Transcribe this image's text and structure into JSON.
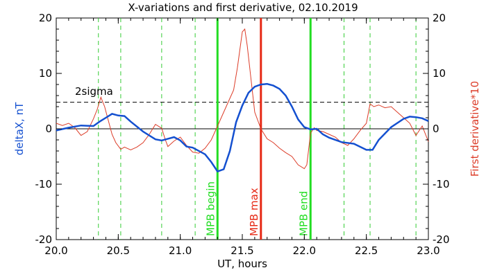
{
  "chart_data": {
    "type": "line",
    "title": "X-variations and first derivative, 02.10.2019",
    "xlabel": "UT, hours",
    "ylabel_left": "deltaX, nT",
    "ylabel_right": "First derivative*10",
    "xlim": [
      20.0,
      23.0
    ],
    "ylim": [
      -20,
      20
    ],
    "x_ticks": [
      "20.0",
      "20.5",
      "21.0",
      "21.5",
      "22.0",
      "22.5",
      "23.0"
    ],
    "x_tick_values": [
      20.0,
      20.5,
      21.0,
      21.5,
      22.0,
      22.5,
      23.0
    ],
    "y_ticks": [
      "20",
      "10",
      "0",
      "-10",
      "-20"
    ],
    "y_tick_values": [
      20,
      10,
      0,
      -10,
      -20
    ],
    "threshold": {
      "label": "2sigma",
      "value": 4.8
    },
    "zero_line": 0,
    "colors": {
      "deltaX": "#1450d0",
      "derivative": "#dc3c28",
      "mpb_begin": "#22dd22",
      "mpb_max": "#e62814",
      "mpb_end": "#22dd22",
      "dashed_green": "#33cc33"
    },
    "green_dashed_x": [
      20.34,
      20.52,
      20.85,
      21.12,
      22.32,
      22.53,
      22.9
    ],
    "markers": [
      {
        "label": "MPB begin",
        "x": 21.3,
        "color": "#22dd22"
      },
      {
        "label": "MPB max",
        "x": 21.65,
        "color": "#e62814"
      },
      {
        "label": "MPB end",
        "x": 22.05,
        "color": "#22dd22"
      }
    ],
    "series": [
      {
        "name": "deltaX",
        "color": "#1450d0",
        "x": [
          20.0,
          20.1,
          20.2,
          20.3,
          20.35,
          20.4,
          20.45,
          20.5,
          20.55,
          20.6,
          20.7,
          20.8,
          20.85,
          20.9,
          20.95,
          21.0,
          21.05,
          21.1,
          21.2,
          21.25,
          21.3,
          21.35,
          21.4,
          21.45,
          21.5,
          21.55,
          21.6,
          21.65,
          21.7,
          21.75,
          21.8,
          21.85,
          21.9,
          21.95,
          22.0,
          22.05,
          22.1,
          22.15,
          22.2,
          22.3,
          22.4,
          22.5,
          22.55,
          22.6,
          22.7,
          22.8,
          22.85,
          22.9,
          22.95,
          23.0
        ],
        "values": [
          -0.3,
          0.2,
          0.6,
          0.5,
          1.3,
          2.0,
          2.7,
          2.4,
          2.3,
          1.3,
          -0.5,
          -1.9,
          -2.1,
          -1.8,
          -1.5,
          -2.1,
          -3.2,
          -3.4,
          -4.6,
          -6.0,
          -7.7,
          -7.3,
          -4.0,
          1.2,
          4.2,
          6.5,
          7.6,
          8.0,
          8.1,
          7.8,
          7.2,
          6.0,
          4.0,
          1.7,
          0.3,
          -0.1,
          0.0,
          -1.0,
          -1.6,
          -2.4,
          -2.7,
          -3.8,
          -3.8,
          -2.0,
          0.3,
          1.8,
          2.2,
          2.1,
          1.9,
          1.4
        ]
      },
      {
        "name": "First derivative*10",
        "color": "#dc3c28",
        "x": [
          20.0,
          20.05,
          20.1,
          20.15,
          20.2,
          20.25,
          20.3,
          20.33,
          20.36,
          20.39,
          20.42,
          20.45,
          20.48,
          20.52,
          20.55,
          20.6,
          20.65,
          20.7,
          20.75,
          20.8,
          20.85,
          20.88,
          20.9,
          20.95,
          21.0,
          21.05,
          21.1,
          21.15,
          21.2,
          21.25,
          21.3,
          21.35,
          21.4,
          21.43,
          21.46,
          21.5,
          21.52,
          21.54,
          21.57,
          21.6,
          21.65,
          21.7,
          21.75,
          21.8,
          21.85,
          21.9,
          21.95,
          22.0,
          22.02,
          22.05,
          22.08,
          22.1,
          22.15,
          22.2,
          22.25,
          22.3,
          22.35,
          22.4,
          22.45,
          22.5,
          22.53,
          22.56,
          22.6,
          22.65,
          22.7,
          22.75,
          22.8,
          22.85,
          22.9,
          22.95,
          23.0
        ],
        "values": [
          1.0,
          0.6,
          1.0,
          0.2,
          -1.2,
          -0.5,
          1.8,
          3.5,
          5.7,
          4.0,
          1.5,
          -1.0,
          -2.5,
          -3.7,
          -3.3,
          -3.8,
          -3.3,
          -2.5,
          -1.0,
          0.8,
          0.1,
          -2.0,
          -3.2,
          -2.2,
          -1.5,
          -3.0,
          -4.2,
          -4.4,
          -3.5,
          -2.0,
          0.5,
          3.0,
          5.5,
          7.0,
          11.0,
          17.5,
          18.0,
          15.0,
          9.0,
          3.0,
          0.0,
          -1.8,
          -2.5,
          -3.5,
          -4.3,
          -5.0,
          -6.5,
          -7.2,
          -6.5,
          -0.8,
          0.2,
          -0.3,
          -0.5,
          -1.0,
          -1.5,
          -2.5,
          -3.0,
          -1.8,
          -0.3,
          1.0,
          4.5,
          4.0,
          4.3,
          3.8,
          4.0,
          3.0,
          2.0,
          1.0,
          -1.2,
          0.5,
          -2.3
        ]
      }
    ]
  }
}
